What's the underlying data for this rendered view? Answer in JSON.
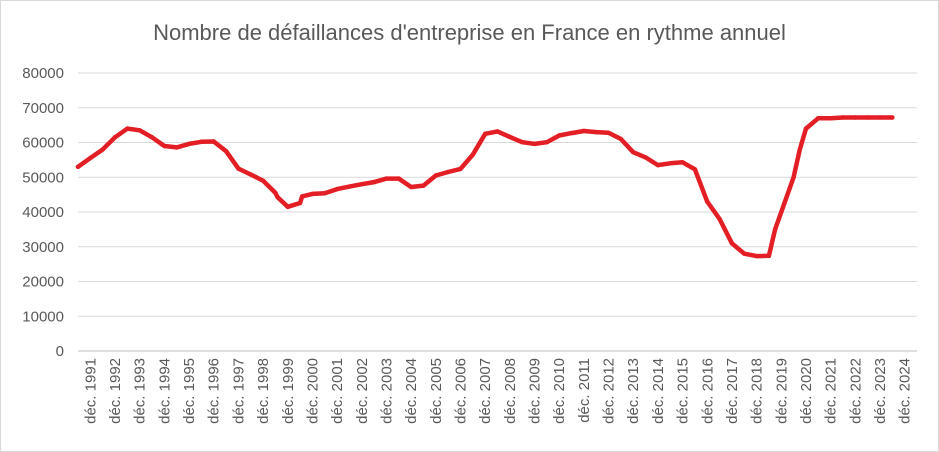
{
  "chart_data": {
    "type": "line",
    "title": "Nombre de défaillances d'entreprise en France en rythme annuel",
    "xlabel": "",
    "ylabel": "",
    "ylim": [
      0,
      80000
    ],
    "y_ticks": [
      0,
      10000,
      20000,
      30000,
      40000,
      50000,
      60000,
      70000,
      80000
    ],
    "x_tick_labels": [
      "déc. 1991",
      "déc. 1992",
      "déc. 1993",
      "déc. 1994",
      "déc. 1995",
      "déc. 1996",
      "déc. 1997",
      "déc. 1998",
      "déc. 1999",
      "déc. 2000",
      "déc. 2001",
      "déc. 2002",
      "déc. 2003",
      "déc. 2004",
      "déc. 2005",
      "déc. 2006",
      "déc. 2007",
      "déc. 2008",
      "déc. 2009",
      "déc. 2010",
      "déc. 2011",
      "déc. 2012",
      "déc. 2013",
      "déc. 2014",
      "déc. 2015",
      "déc. 2016",
      "déc. 2017",
      "déc. 2018",
      "déc. 2019",
      "déc. 2020",
      "déc. 2021",
      "déc. 2022",
      "déc. 2023",
      "déc. 2024"
    ],
    "grid": true,
    "legend": "none",
    "series": [
      {
        "color": "#e31e24",
        "x": [
          "1991-12",
          "1992-06",
          "1992-12",
          "1993-06",
          "1993-12",
          "1994-06",
          "1994-12",
          "1995-06",
          "1995-12",
          "1996-06",
          "1996-12",
          "1997-06",
          "1997-12",
          "1998-06",
          "1998-12",
          "1999-06",
          "1999-12",
          "2000-01",
          "2000-06",
          "2000-12",
          "2001-01",
          "2001-06",
          "2001-12",
          "2002-06",
          "2002-12",
          "2003-06",
          "2003-12",
          "2004-06",
          "2004-12",
          "2005-06",
          "2005-12",
          "2006-06",
          "2006-12",
          "2007-06",
          "2007-12",
          "2008-06",
          "2008-12",
          "2009-06",
          "2009-12",
          "2010-06",
          "2010-12",
          "2011-06",
          "2011-12",
          "2012-06",
          "2012-12",
          "2013-06",
          "2013-12",
          "2014-06",
          "2014-12",
          "2015-06",
          "2015-12",
          "2016-06",
          "2016-12",
          "2017-06",
          "2017-12",
          "2018-06",
          "2018-12",
          "2019-06",
          "2019-12",
          "2020-03",
          "2020-06",
          "2020-12",
          "2021-03",
          "2021-06",
          "2021-12",
          "2022-06",
          "2022-12",
          "2023-06",
          "2023-12",
          "2024-06",
          "2024-12"
        ],
        "values": [
          53000,
          55500,
          58000,
          61500,
          64000,
          63500,
          61500,
          59000,
          58600,
          59600,
          60200,
          60300,
          57500,
          52500,
          50800,
          49000,
          45500,
          44300,
          41500,
          42600,
          44500,
          45200,
          45400,
          46600,
          47300,
          48000,
          48600,
          49600,
          49600,
          47200,
          47600,
          50500,
          51500,
          52400,
          56500,
          62500,
          63200,
          61600,
          60100,
          59600,
          60100,
          62000,
          62700,
          63300,
          63000,
          62800,
          61000,
          57200,
          55700,
          53500,
          54000,
          54300,
          52300,
          43000,
          38000,
          31000,
          28000,
          27300,
          27400,
          35000,
          40000,
          50000,
          58000,
          64000,
          67000,
          67000,
          67200,
          67200,
          67200,
          67200,
          67200
        ]
      }
    ]
  }
}
